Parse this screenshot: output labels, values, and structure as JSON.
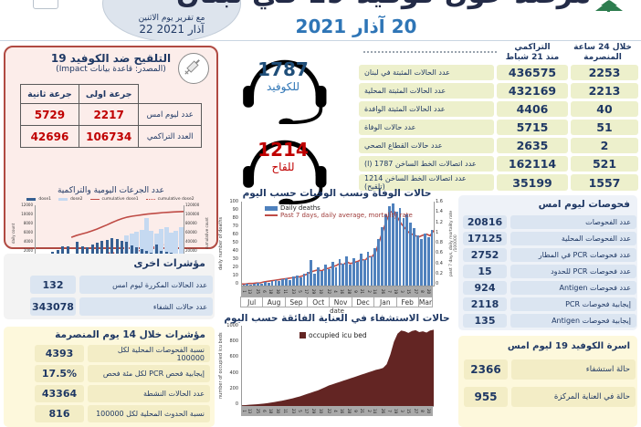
{
  "colors": {
    "navy": "#1f3864",
    "red": "#c00000",
    "accent_blue": "#2e75b6",
    "bar_blue": "#4f81bd",
    "line_red": "#bf4b45",
    "maroon": "#632523",
    "dose1": "#365f91",
    "dose2": "#c5d9f1"
  },
  "header": {
    "title": "مرصد حول كوفيد-19 في لبنان",
    "date": "20 آذار 2021",
    "bubble_line1": "مع تقرير يوم الاثنين",
    "bubble_line2": "22 آذار 2021"
  },
  "hotlines": {
    "covid": {
      "number": "1787",
      "label": "للكوفيد"
    },
    "vaccine": {
      "number": "1214",
      "label": "للقاح"
    }
  },
  "vaccination": {
    "title": "التلقيح ضد الكوفيد 19",
    "source": "(المصدر: قاعدة بيانات Impact)",
    "col_first": "جرعة اولى",
    "col_second": "جرعة ثانية",
    "rows": [
      {
        "label": "عدد ليوم امس",
        "first": "2217",
        "second": "5729"
      },
      {
        "label": "العدد التراكمي",
        "first": "106734",
        "second": "42696"
      }
    ],
    "chart_caption": "عدد الجرعات اليومية والتراكمية"
  },
  "main_table": {
    "col_24h_line1": "خلال 24 ساعة",
    "col_24h_line2": "المنصرمة",
    "col_cum_line1": "التراكمي",
    "col_cum_line2": "منذ 21 شباط",
    "rows": [
      {
        "label": "عدد الحالات المثبتة في لبنان",
        "cum": "436575",
        "h24": "2253"
      },
      {
        "label": "عدد الحالات المثبتة المحلية",
        "cum": "432169",
        "h24": "2213"
      },
      {
        "label": "عدد الحالات المثبتة الوافدة",
        "cum": "4406",
        "h24": "40"
      },
      {
        "label": "عدد حالات الوفاة",
        "cum": "5715",
        "h24": "51"
      },
      {
        "label": "عدد حالات القطاع الصحي",
        "cum": "2635",
        "h24": "2"
      },
      {
        "label": "عدد اتصالات الخط الساخن 1787 (ا)",
        "cum": "162114",
        "h24": "521"
      },
      {
        "label": "عدد اتصالات الخط الساخن 1214 (تلقيح)",
        "cum": "35199",
        "h24": "1557"
      }
    ]
  },
  "tests": {
    "title": "فحوصات ليوم امس",
    "rows": [
      {
        "value": "20816",
        "label": "عدد الفحوصات"
      },
      {
        "value": "17125",
        "label": "عدد الفحوصات المحلية"
      },
      {
        "value": "2752",
        "label": "عدد فحوصات PCR في المطار"
      },
      {
        "value": "15",
        "label": "عدد فحوصات PCR للحدود"
      },
      {
        "value": "924",
        "label": "عدد فحوصات Antigen"
      },
      {
        "value": "2118",
        "label": "إيجابية فحوصات PCR"
      },
      {
        "value": "135",
        "label": "إيجابية فحوصات Antigen"
      }
    ]
  },
  "beds": {
    "title": "اسرة الكوفيد 19 ليوم امس",
    "rows": [
      {
        "value": "2366",
        "label": "حالة استشفاء"
      },
      {
        "value": "955",
        "label": "حالة في العناية المركزة"
      }
    ]
  },
  "other_indicators": {
    "title": "مؤشرات اخرى",
    "rows": [
      {
        "value": "132",
        "label": "عدد الحالات المكررة ليوم امس"
      },
      {
        "value": "343078",
        "label": "عدد حالات الشفاء"
      }
    ]
  },
  "fourteen_day": {
    "title": "مؤشرات خلال 14 يوم المنصرمة",
    "rows": [
      {
        "value": "4393",
        "label": "نسبة الفحوصات المحلية لكل 100000"
      },
      {
        "value": "17.5%",
        "label": "إيجابية فحص PCR لكل مئة فحص"
      },
      {
        "value": "43364",
        "label": "عدد الحالات النشطة"
      },
      {
        "value": "816",
        "label": "نسبة الحدوث المحلية لكل 100000"
      }
    ]
  },
  "chart_data": [
    {
      "type": "bar",
      "id": "vaccine-doses",
      "title": "عدد الجرعات اليومية والتراكمية",
      "legend": [
        "dose1",
        "dose2",
        "cumulative dose1",
        "cumulative dose2"
      ],
      "ylabel_left": "daily count",
      "ylabel_right": "cumulative count",
      "yticks_left": [
        0,
        2000,
        4000,
        6000,
        8000,
        10000,
        12000
      ],
      "yticks_right": [
        0,
        20000,
        40000,
        60000,
        80000,
        100000,
        120000
      ],
      "ylim_left": [
        0,
        12000
      ],
      "ylim_right": [
        0,
        120000
      ],
      "months": [
        "Feb",
        "Mar"
      ],
      "day_ticks": [
        "14",
        "15",
        "16",
        "17",
        "18",
        "19",
        "20",
        "21",
        "22",
        "23",
        "24",
        "25",
        "26",
        "27",
        "28",
        "1",
        "2",
        "3",
        "4",
        "5",
        "6",
        "7",
        "8",
        "9",
        "10",
        "11",
        "12",
        "13",
        "14",
        "15"
      ],
      "series": [
        {
          "name": "dose1",
          "values": [
            800,
            1200,
            1600,
            2100,
            2600,
            3200,
            3300,
            0,
            4300,
            3200,
            3100,
            3600,
            4000,
            4500,
            4700,
            5000,
            4800,
            4500,
            4300,
            3400,
            3100,
            2700,
            2300,
            1900,
            3700,
            2400,
            2100,
            1900,
            1800,
            1800
          ]
        },
        {
          "name": "dose2",
          "values": [
            0,
            0,
            0,
            0,
            0,
            0,
            0,
            0,
            0,
            0,
            0,
            0,
            0,
            0,
            200,
            300,
            400,
            500,
            5700,
            6000,
            6400,
            6700,
            9200,
            6500,
            6000,
            7000,
            7400,
            6100,
            6600,
            7400
          ]
        },
        {
          "name": "cumulative dose1",
          "values": [
            null,
            null,
            null,
            null,
            null,
            null,
            null,
            52000,
            56000,
            59000,
            62000,
            65500,
            69500,
            74000,
            78500,
            83500,
            88000,
            92000,
            95000,
            97000,
            98500,
            100000,
            101500,
            102500,
            103500,
            104500,
            105200,
            105800,
            106300,
            106734
          ]
        },
        {
          "name": "cumulative dose2",
          "values": [
            null,
            null,
            null,
            null,
            null,
            null,
            null,
            null,
            null,
            null,
            null,
            null,
            null,
            null,
            18500,
            18800,
            19200,
            19700,
            20300,
            21500,
            23000,
            25000,
            27500,
            30500,
            33500,
            36500,
            39000,
            40800,
            41900,
            42696
          ]
        }
      ]
    },
    {
      "type": "bar",
      "id": "daily-deaths",
      "title": "حالات الوفاة ونسب الوفيات حسب اليوم",
      "legend": [
        "Daily deaths",
        "Past 7 days, daily average, mortality rate"
      ],
      "ylabel_left": "daily number of deaths",
      "ylabel_right": "past 7 days, daily mortality rate /100000",
      "xlabel": "date",
      "yticks_left": [
        0,
        10,
        20,
        30,
        40,
        50,
        60,
        70,
        80,
        90,
        100
      ],
      "yticks_right": [
        0,
        0.2,
        0.4,
        0.6,
        0.8,
        1,
        1.2,
        1.4,
        1.6
      ],
      "ylim_left": [
        0,
        100
      ],
      "ylim_right": [
        0,
        1.6
      ],
      "months": [
        "Jul",
        "Aug",
        "Sep",
        "Oct",
        "Nov",
        "Dec",
        "Jan",
        "Feb",
        "Mar"
      ],
      "day_ticks": [
        "1",
        "13",
        "25",
        "6",
        "18",
        "30",
        "11",
        "23",
        "5",
        "17",
        "29",
        "10",
        "22",
        "4",
        "16",
        "28",
        "9",
        "21",
        "2",
        "14",
        "26",
        "7",
        "19",
        "3",
        "15",
        "27",
        "8",
        "20"
      ],
      "series": [
        {
          "name": "Daily deaths",
          "values": [
            1,
            2,
            1,
            2,
            3,
            2,
            4,
            3,
            5,
            6,
            5,
            8,
            9,
            7,
            11,
            12,
            10,
            14,
            16,
            30,
            14,
            22,
            17,
            25,
            20,
            28,
            22,
            32,
            26,
            35,
            25,
            33,
            28,
            38,
            30,
            40,
            35,
            45,
            55,
            70,
            85,
            95,
            98,
            88,
            92,
            80,
            85,
            75,
            68,
            60,
            55,
            62,
            58,
            66
          ]
        },
        {
          "name": "Past 7 days, daily average, mortality rate",
          "values": [
            0.03,
            0.03,
            0.04,
            0.04,
            0.05,
            0.05,
            0.07,
            0.08,
            0.09,
            0.1,
            0.11,
            0.12,
            0.13,
            0.14,
            0.15,
            0.16,
            0.17,
            0.19,
            0.22,
            0.26,
            0.28,
            0.3,
            0.28,
            0.32,
            0.33,
            0.36,
            0.38,
            0.42,
            0.4,
            0.45,
            0.42,
            0.44,
            0.46,
            0.5,
            0.48,
            0.55,
            0.55,
            0.65,
            0.85,
            1.05,
            1.25,
            1.4,
            1.42,
            1.3,
            1.18,
            1.1,
            1.02,
            0.98,
            0.95,
            0.93,
            0.96,
            0.98,
            0.95,
            1.05
          ]
        }
      ]
    },
    {
      "type": "area",
      "id": "icu-beds",
      "title": "حالات الاستشفاء في العناية الفائقة حسب اليوم",
      "legend": [
        "occupied icu bed"
      ],
      "ylabel_left": "number of occupied icu beds",
      "yticks_left": [
        0,
        200,
        400,
        600,
        800,
        1000
      ],
      "ylim": [
        0,
        1000
      ],
      "day_ticks": [
        "1",
        "13",
        "25",
        "6",
        "18",
        "30",
        "11",
        "23",
        "5",
        "17",
        "29",
        "10",
        "22",
        "4",
        "16",
        "28",
        "9",
        "21",
        "2",
        "14",
        "26",
        "7",
        "19",
        "3",
        "15",
        "27",
        "8",
        "20"
      ],
      "series": [
        {
          "name": "occupied icu bed",
          "values": [
            10,
            12,
            15,
            18,
            22,
            26,
            30,
            36,
            42,
            50,
            58,
            66,
            75,
            85,
            95,
            108,
            120,
            135,
            150,
            165,
            180,
            195,
            215,
            235,
            255,
            270,
            285,
            300,
            315,
            330,
            345,
            360,
            375,
            390,
            405,
            420,
            435,
            450,
            460,
            475,
            520,
            640,
            800,
            900,
            940,
            930,
            910,
            935,
            945,
            920,
            930,
            915,
            940,
            950
          ]
        }
      ]
    }
  ]
}
